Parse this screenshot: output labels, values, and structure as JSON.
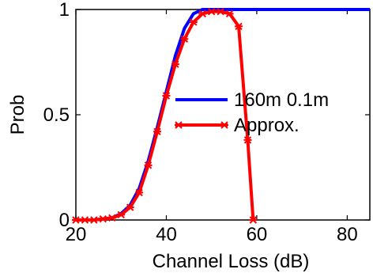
{
  "chart_data": {
    "type": "line",
    "xlabel": "Channel Loss (dB)",
    "ylabel": "Prob",
    "xlim": [
      20,
      85
    ],
    "ylim": [
      0,
      1
    ],
    "xticks": [
      20,
      40,
      60,
      80
    ],
    "yticks": [
      0,
      0.5,
      1
    ],
    "ytick_labels": [
      "0",
      "0.5",
      "1"
    ],
    "grid": false,
    "legend_position": "center-right",
    "series": [
      {
        "name": "160m 0.1m",
        "color": "#0000ff",
        "marker": "none",
        "x": [
          20,
          22,
          24,
          26,
          28,
          30,
          32,
          34,
          36,
          38,
          40,
          42,
          44,
          46,
          48,
          50,
          52,
          54,
          56,
          58,
          60,
          65,
          70,
          75,
          80,
          85
        ],
        "y": [
          0.0,
          0.0,
          0.0,
          0.005,
          0.01,
          0.03,
          0.07,
          0.15,
          0.28,
          0.44,
          0.61,
          0.78,
          0.91,
          0.98,
          1.0,
          1.0,
          1.0,
          1.0,
          1.0,
          1.0,
          1.0,
          1.0,
          1.0,
          1.0,
          1.0,
          1.0
        ]
      },
      {
        "name": "Approx.",
        "color": "#ff0000",
        "marker": "x",
        "x": [
          20,
          22,
          24,
          26,
          28,
          30,
          32,
          34,
          36,
          38,
          40,
          42,
          44,
          46,
          48,
          50,
          52,
          54,
          56,
          58,
          59.2
        ],
        "y": [
          0.0,
          0.0,
          0.0,
          0.005,
          0.01,
          0.025,
          0.06,
          0.13,
          0.26,
          0.42,
          0.59,
          0.74,
          0.86,
          0.94,
          0.98,
          0.99,
          0.99,
          0.98,
          0.92,
          0.38,
          0.0
        ]
      }
    ]
  }
}
